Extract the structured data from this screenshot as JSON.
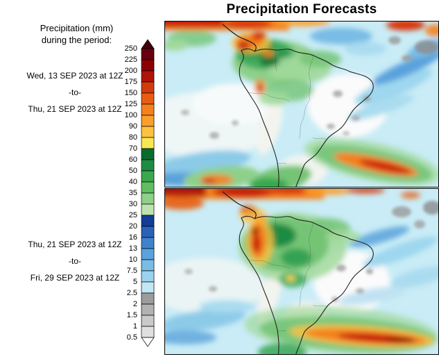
{
  "title": "Precipitation Forecasts",
  "legend": {
    "line1": "Precipitation (mm)",
    "line2": "during the period:"
  },
  "periods": [
    {
      "start": "Wed, 13 SEP 2023 at 12Z",
      "separator": "-to-",
      "end": "Thu, 21 SEP 2023 at 12Z"
    },
    {
      "start": "Thu, 21 SEP 2023 at 12Z",
      "separator": "-to-",
      "end": "Fri, 29 SEP 2023 at 12Z"
    }
  ],
  "colorbar": {
    "tick_labels": [
      "250",
      "225",
      "200",
      "175",
      "150",
      "125",
      "100",
      "90",
      "80",
      "70",
      "60",
      "50",
      "40",
      "35",
      "30",
      "25",
      "20",
      "16",
      "13",
      "10",
      "7.5",
      "5",
      "2.5",
      "2",
      "1.5",
      "1",
      "0.5"
    ],
    "band_colors_top_to_bottom": [
      "#45000d",
      "#68000f",
      "#8b0000",
      "#b01408",
      "#d23b0e",
      "#e85d12",
      "#f5811c",
      "#fa9e2e",
      "#fdc23f",
      "#f8e954",
      "#0a6b2f",
      "#1e8c43",
      "#39a84e",
      "#62bd60",
      "#8ed08a",
      "#bce4ae",
      "#123c96",
      "#2a62b8",
      "#3f83cc",
      "#5aa2dc",
      "#79bce6",
      "#9bd2ee",
      "#c2e6f5",
      "#9c9c9c",
      "#b2b2b2",
      "#c9c9c9",
      "#e0e0e0",
      "#ffffff"
    ]
  },
  "map_style": {
    "ocean_base": "#c9ecf6",
    "coastline": "#222222"
  },
  "maps": [
    {
      "id": "forecast-map-week-1",
      "period_index": 0
    },
    {
      "id": "forecast-map-week-2",
      "period_index": 1
    }
  ]
}
